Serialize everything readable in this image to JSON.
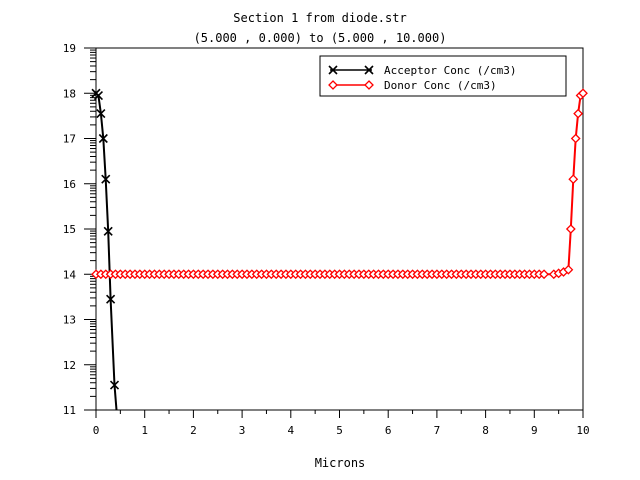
{
  "chart_data": {
    "type": "line",
    "title": "Section 1 from diode.str",
    "subtitle": "(5.000 , 0.000) to (5.000 , 10.000)",
    "xlabel": "Microns",
    "ylabel": "",
    "xlim": [
      0,
      10
    ],
    "ylim": [
      11,
      19
    ],
    "xticks": [
      "0",
      "1",
      "2",
      "3",
      "4",
      "5",
      "6",
      "7",
      "8",
      "9",
      "10"
    ],
    "yticks": [
      "11",
      "12",
      "13",
      "14",
      "15",
      "16",
      "17",
      "18",
      "19"
    ],
    "grid": false,
    "legend_position": "top-right",
    "series": [
      {
        "name": "Acceptor Conc (/cm3)",
        "color": "#000000",
        "marker": "x",
        "points": [
          [
            0.0,
            18.0
          ],
          [
            0.05,
            17.95
          ],
          [
            0.1,
            17.55
          ],
          [
            0.15,
            17.0
          ],
          [
            0.2,
            16.1
          ],
          [
            0.25,
            14.95
          ],
          [
            0.3,
            13.45
          ],
          [
            0.38,
            11.55
          ],
          [
            0.42,
            11.0
          ]
        ]
      },
      {
        "name": "Donor Conc (/cm3)",
        "color": "#ff0000",
        "marker": "diamond",
        "points": [
          [
            0.0,
            14.0
          ],
          [
            9.2,
            14.0
          ],
          [
            9.4,
            14.0
          ],
          [
            9.5,
            14.02
          ],
          [
            9.6,
            14.05
          ],
          [
            9.7,
            14.1
          ],
          [
            9.75,
            15.0
          ],
          [
            9.8,
            16.1
          ],
          [
            9.85,
            17.0
          ],
          [
            9.9,
            17.55
          ],
          [
            9.95,
            17.95
          ],
          [
            10.0,
            18.0
          ]
        ]
      }
    ]
  }
}
